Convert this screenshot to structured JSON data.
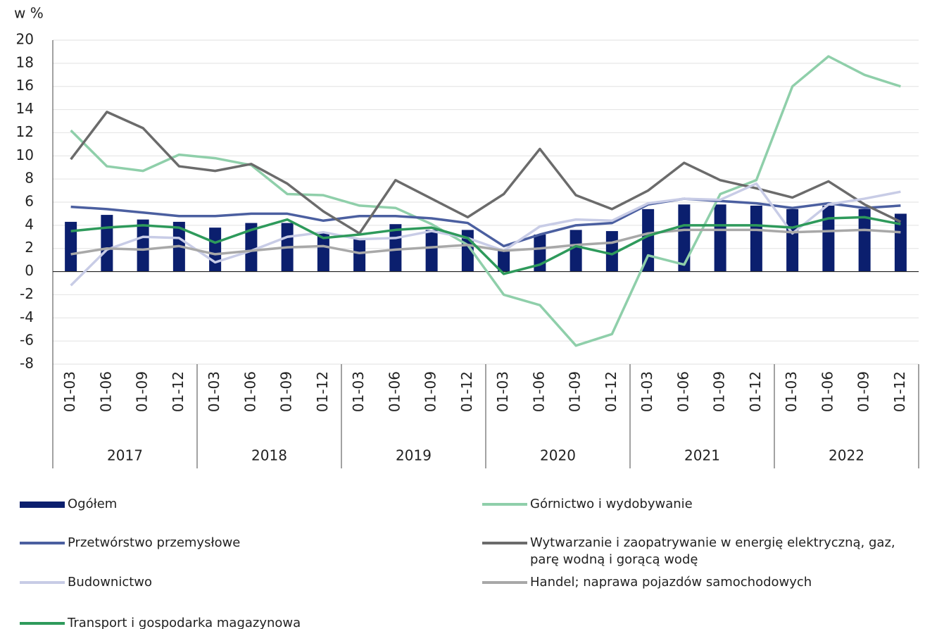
{
  "chart_data": {
    "type": "bar",
    "y_axis_label": "w %",
    "categories": [
      "01-03",
      "01-06",
      "01-09",
      "01-12",
      "01-03",
      "01-06",
      "01-09",
      "01-12",
      "01-03",
      "01-06",
      "01-09",
      "01-12",
      "01-03",
      "01-06",
      "01-09",
      "01-12",
      "01-03",
      "01-06",
      "01-09",
      "01-12",
      "01-03",
      "01-06",
      "01-09",
      "01-12"
    ],
    "groups": [
      "2017",
      "2018",
      "2019",
      "2020",
      "2021",
      "2022"
    ],
    "ylim": [
      -8,
      20
    ],
    "yticks": [
      -8,
      -6,
      -4,
      -2,
      0,
      2,
      4,
      6,
      8,
      10,
      12,
      14,
      16,
      18,
      20
    ],
    "grid": true,
    "series": [
      {
        "name": "Ogółem",
        "type": "bar",
        "color": "#0b1f6e",
        "values": [
          4.3,
          4.9,
          4.5,
          4.3,
          3.8,
          4.2,
          4.2,
          3.4,
          2.8,
          4.1,
          3.6,
          3.6,
          1.9,
          3.2,
          3.6,
          3.5,
          5.4,
          5.8,
          5.8,
          5.7,
          5.4,
          5.7,
          5.4,
          5.0
        ]
      },
      {
        "name": "Górnictwo i wydobywanie",
        "type": "line",
        "color": "#8fcfaa",
        "values": [
          12.2,
          9.1,
          8.7,
          10.1,
          9.8,
          9.2,
          6.7,
          6.6,
          5.7,
          5.5,
          4.1,
          2.3,
          -2.0,
          -2.9,
          -6.4,
          -5.4,
          1.4,
          0.6,
          6.7,
          7.9,
          16.0,
          18.6,
          17.0,
          16.0
        ]
      },
      {
        "name": "Przetwórstwo przemysłowe",
        "type": "line",
        "color": "#4b5fa0",
        "values": [
          5.6,
          5.4,
          5.1,
          4.8,
          4.8,
          5.0,
          5.0,
          4.4,
          4.8,
          4.8,
          4.6,
          4.2,
          2.2,
          3.2,
          4.0,
          4.2,
          5.8,
          6.3,
          6.1,
          5.9,
          5.5,
          5.9,
          5.5,
          5.7
        ]
      },
      {
        "name": "Wytwarzanie i zaopatrywanie w energię elektryczną, gaz, parę wodną i gorącą wodę",
        "type": "line",
        "color": "#6b6b6b",
        "values": [
          9.7,
          13.8,
          12.4,
          9.1,
          8.7,
          9.3,
          7.6,
          5.2,
          3.3,
          7.9,
          6.3,
          4.7,
          6.7,
          10.6,
          6.6,
          5.4,
          7.0,
          9.4,
          7.9,
          7.2,
          6.4,
          7.8,
          5.8,
          4.3
        ]
      },
      {
        "name": "Budownictwo",
        "type": "line",
        "color": "#c8cce6",
        "values": [
          -1.2,
          1.9,
          3.0,
          2.9,
          0.8,
          1.8,
          3.0,
          3.4,
          2.8,
          2.9,
          3.5,
          2.9,
          1.8,
          3.9,
          4.5,
          4.4,
          5.9,
          6.3,
          6.2,
          7.6,
          3.3,
          5.8,
          6.3,
          6.9
        ]
      },
      {
        "name": "Handel; naprawa pojazdów samochodowych",
        "type": "line",
        "color": "#a8a8a8",
        "values": [
          1.5,
          2.0,
          1.9,
          2.2,
          1.5,
          1.8,
          2.1,
          2.2,
          1.6,
          1.9,
          2.1,
          2.3,
          1.8,
          2.0,
          2.3,
          2.5,
          3.3,
          3.6,
          3.6,
          3.6,
          3.4,
          3.5,
          3.6,
          3.4
        ]
      },
      {
        "name": "Transport i gospodarka magazynowa",
        "type": "line",
        "color": "#2e9a5b",
        "values": [
          3.5,
          3.8,
          4.0,
          3.8,
          2.5,
          3.6,
          4.5,
          2.9,
          3.2,
          3.6,
          3.8,
          2.9,
          -0.2,
          0.6,
          2.2,
          1.5,
          3.1,
          4.0,
          4.0,
          4.0,
          3.8,
          4.6,
          4.7,
          4.1
        ]
      }
    ]
  }
}
